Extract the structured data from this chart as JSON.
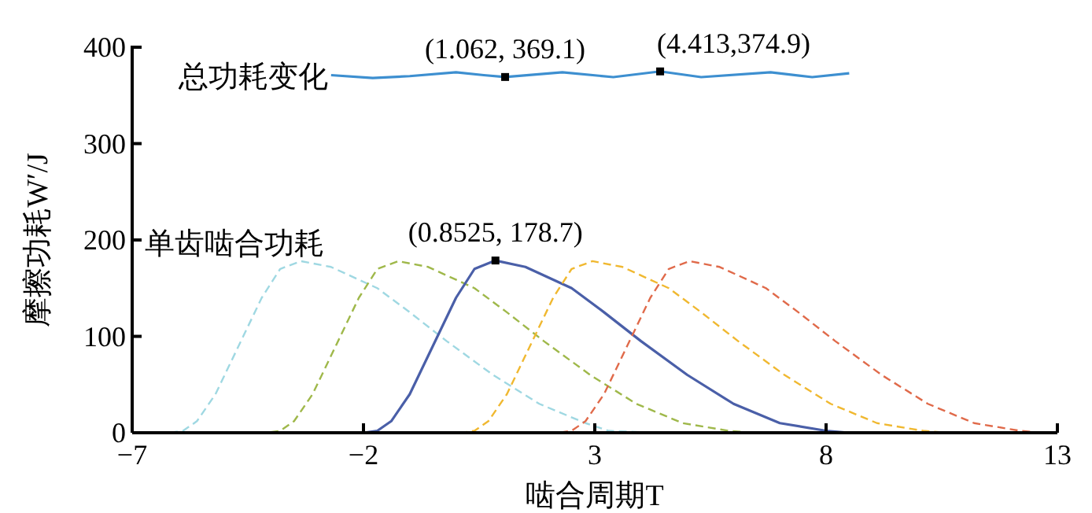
{
  "chart_data": {
    "type": "line",
    "xlabel": "啮合周期T",
    "ylabel": "摩擦功耗W′/J",
    "xlim": [
      -7,
      13
    ],
    "ylim": [
      0,
      400
    ],
    "xticks": [
      -7,
      -2,
      3,
      8,
      13
    ],
    "yticks": [
      0,
      100,
      200,
      300,
      400
    ],
    "grid": false,
    "legend": false,
    "marker": "none",
    "series": [
      {
        "name": "总功耗变化",
        "color": "#3d8fd0",
        "line_style": "solid",
        "x": [
          -2.7,
          -1.8,
          -1.0,
          0.0,
          0.6,
          1.062,
          2.3,
          3.4,
          4.413,
          5.3,
          6.8,
          7.7,
          8.5
        ],
        "values": [
          371,
          368,
          370,
          374,
          371,
          369.1,
          374,
          369,
          374.9,
          369,
          374,
          369,
          373
        ]
      },
      {
        "name": "单齿啮合功耗",
        "color": "#9fd8e2",
        "line_style": "dashed",
        "x": [
          -7,
          -6.2,
          -5.9,
          -5.6,
          -5.2,
          -4.7,
          -4.2,
          -3.8,
          -3.35,
          -2.7,
          -1.7,
          -1.0,
          -0.2,
          0.8,
          1.8,
          2.8,
          3.3,
          4.3,
          13
        ],
        "values": [
          0,
          0,
          2,
          12,
          40,
          90,
          140,
          170,
          178,
          172,
          150,
          125,
          95,
          60,
          30,
          10,
          2,
          0,
          0
        ]
      },
      {
        "color": "#9fb84a",
        "line_style": "dashed",
        "x": [
          -7,
          -4.1,
          -3.8,
          -3.5,
          -3.1,
          -2.6,
          -2.1,
          -1.7,
          -1.25,
          -0.6,
          0.4,
          1.1,
          1.9,
          2.9,
          3.9,
          4.9,
          5.9,
          6.4,
          13
        ],
        "values": [
          0,
          0,
          2,
          12,
          40,
          90,
          140,
          170,
          178,
          172,
          150,
          125,
          95,
          60,
          30,
          10,
          2,
          0,
          0
        ]
      },
      {
        "color": "#4a5fa8",
        "line_style": "solid",
        "x": [
          -7,
          -2,
          -1.7,
          -1.4,
          -1.0,
          -0.5,
          0.0,
          0.4,
          0.8525,
          1.5,
          2.5,
          3.2,
          4.0,
          5.0,
          6.0,
          7.0,
          8.0,
          8.5,
          13
        ],
        "values": [
          0,
          0,
          2,
          12,
          40,
          90,
          140,
          170,
          178.7,
          172,
          150,
          125,
          95,
          60,
          30,
          10,
          2,
          0,
          0
        ]
      },
      {
        "color": "#f0b830",
        "line_style": "dashed",
        "x": [
          -7,
          0.1,
          0.4,
          0.7,
          1.1,
          1.6,
          2.1,
          2.5,
          2.95,
          3.6,
          4.6,
          5.3,
          6.1,
          7.1,
          8.1,
          9.1,
          10.1,
          10.6,
          13
        ],
        "values": [
          0,
          0,
          2,
          12,
          40,
          90,
          140,
          170,
          178,
          172,
          150,
          125,
          95,
          60,
          30,
          10,
          2,
          0,
          0
        ]
      },
      {
        "color": "#e06a4a",
        "line_style": "dashed",
        "x": [
          -7,
          2.2,
          2.5,
          2.8,
          3.2,
          3.7,
          4.2,
          4.6,
          5.05,
          5.7,
          6.7,
          7.4,
          8.2,
          9.2,
          10.2,
          11.2,
          12.2,
          12.7,
          13
        ],
        "values": [
          0,
          0,
          2,
          12,
          40,
          90,
          140,
          170,
          178,
          172,
          150,
          125,
          95,
          60,
          30,
          10,
          2,
          0,
          0
        ]
      }
    ],
    "annotations": [
      {
        "text": "(1.062, 369.1)",
        "x": 1.062,
        "y": 369.1
      },
      {
        "text": "(4.413,374.9)",
        "x": 4.413,
        "y": 374.9
      },
      {
        "text": "(0.8525, 178.7)",
        "x": 0.8525,
        "y": 178.7
      }
    ]
  }
}
